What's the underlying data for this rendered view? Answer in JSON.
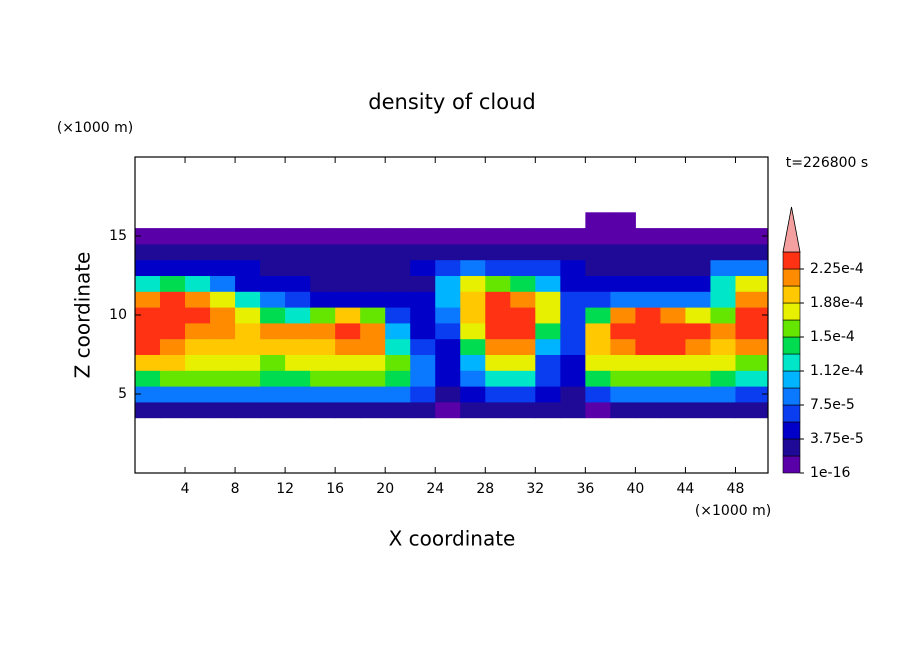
{
  "chart_data": {
    "type": "contourf",
    "title": "density of cloud",
    "xlabel": "X coordinate",
    "ylabel": "Z coordinate",
    "xlabel_unit": "(×1000 m)",
    "ylabel_unit": "(×1000 m)",
    "annotation": "t=226800 s",
    "xlim": [
      0,
      50.6
    ],
    "ylim": [
      0,
      20
    ],
    "xticks": [
      4,
      8,
      12,
      16,
      20,
      24,
      28,
      32,
      36,
      40,
      44,
      48
    ],
    "yticks": [
      5,
      10,
      15
    ],
    "x": [
      1,
      3,
      5,
      7,
      9,
      11,
      13,
      15,
      17,
      19,
      21,
      23,
      25,
      27,
      29,
      31,
      33,
      35,
      37,
      39,
      41,
      43,
      45,
      47,
      49
    ],
    "z": [
      4,
      5,
      6,
      7,
      8,
      9,
      10,
      11,
      12,
      13,
      14,
      15,
      16
    ],
    "values": [
      [
        2e-05,
        2e-05,
        2e-05,
        3e-05,
        3e-05,
        2e-05,
        2e-05,
        2e-05,
        2e-05,
        2e-05,
        2e-05,
        3e-05,
        1e-05,
        2e-05,
        2e-05,
        2e-05,
        2e-05,
        2e-05,
        1e-05,
        2e-05,
        2e-05,
        2e-05,
        2e-05,
        2e-05,
        2e-05
      ],
      [
        8e-05,
        9e-05,
        9e-05,
        9e-05,
        9e-05,
        8e-05,
        8e-05,
        8e-05,
        9e-05,
        9e-05,
        8e-05,
        6e-05,
        3e-05,
        5e-05,
        7e-05,
        7e-05,
        4e-05,
        3e-05,
        7e-05,
        9e-05,
        9e-05,
        9e-05,
        8e-05,
        8e-05,
        6e-05
      ],
      [
        0.00014,
        0.00015,
        0.00015,
        0.00015,
        0.00015,
        0.00014,
        0.00014,
        0.00015,
        0.00016,
        0.00016,
        0.00014,
        8e-05,
        4e-05,
        9e-05,
        0.00013,
        0.00013,
        6e-05,
        4e-05,
        0.00014,
        0.00015,
        0.00015,
        0.00015,
        0.00015,
        0.00014,
        0.00012
      ],
      [
        0.00019,
        0.00019,
        0.00017,
        0.00017,
        0.00017,
        0.00016,
        0.00017,
        0.00018,
        0.00018,
        0.00018,
        0.00015,
        8e-05,
        4e-05,
        0.00011,
        0.00017,
        0.00018,
        6e-05,
        5e-05,
        0.00017,
        0.00018,
        0.00018,
        0.00018,
        0.00018,
        0.00017,
        0.00016
      ],
      [
        0.00023,
        0.00022,
        0.0002,
        0.00019,
        0.0002,
        0.00019,
        0.0002,
        0.0002,
        0.00022,
        0.00021,
        0.00013,
        6e-05,
        5e-05,
        0.00014,
        0.00021,
        0.00022,
        0.0001,
        6e-05,
        0.00019,
        0.00022,
        0.00023,
        0.00023,
        0.00022,
        0.0002,
        0.00021
      ],
      [
        0.00024,
        0.00024,
        0.00022,
        0.00021,
        0.0002,
        0.00021,
        0.00022,
        0.00022,
        0.00023,
        0.00022,
        0.00011,
        5e-05,
        6e-05,
        0.00017,
        0.00024,
        0.00024,
        0.00014,
        6e-05,
        0.00019,
        0.00024,
        0.00024,
        0.00024,
        0.00023,
        0.00021,
        0.00023
      ],
      [
        0.00024,
        0.00024,
        0.00023,
        0.00022,
        0.00018,
        0.00014,
        0.00012,
        0.00016,
        0.00019,
        0.00015,
        7e-05,
        4e-05,
        8e-05,
        0.0002,
        0.00024,
        0.00024,
        0.00018,
        7e-05,
        0.00014,
        0.00022,
        0.00023,
        0.00022,
        0.00018,
        0.00015,
        0.00024
      ],
      [
        0.00022,
        0.00023,
        0.00022,
        0.00018,
        0.00012,
        8e-05,
        6e-05,
        5e-05,
        5e-05,
        5e-05,
        4e-05,
        4e-05,
        0.0001,
        0.0002,
        0.00023,
        0.00022,
        0.00017,
        7e-05,
        6e-05,
        8e-05,
        9e-05,
        8e-05,
        8e-05,
        0.00012,
        0.00022
      ],
      [
        0.00012,
        0.00014,
        0.00012,
        8e-05,
        5e-05,
        4e-05,
        4e-05,
        3e-05,
        3e-05,
        3e-05,
        3e-05,
        3e-05,
        0.00011,
        0.00017,
        0.00016,
        0.00014,
        0.0001,
        5e-05,
        4e-05,
        4e-05,
        4e-05,
        4e-05,
        4e-05,
        0.00012,
        0.00017
      ],
      [
        5e-05,
        5e-05,
        5e-05,
        4e-05,
        4e-05,
        3e-05,
        3e-05,
        3e-05,
        3e-05,
        3e-05,
        3e-05,
        4e-05,
        7e-05,
        8e-05,
        7e-05,
        6e-05,
        6e-05,
        4e-05,
        3e-05,
        3e-05,
        3e-05,
        3e-05,
        3e-05,
        8e-05,
        9e-05
      ],
      [
        2e-05,
        2e-05,
        2e-05,
        2e-05,
        2e-05,
        2e-05,
        2e-05,
        2e-05,
        2e-05,
        2e-05,
        2e-05,
        2e-05,
        3e-05,
        3e-05,
        3e-05,
        3e-05,
        3e-05,
        2e-05,
        2e-05,
        2e-05,
        2e-05,
        2e-05,
        2e-05,
        3e-05,
        3e-05
      ],
      [
        1e-05,
        1e-05,
        1e-05,
        1e-05,
        1e-05,
        1e-05,
        1e-05,
        1e-05,
        1e-05,
        1e-05,
        1e-05,
        1e-05,
        1e-05,
        1e-05,
        1e-05,
        1e-05,
        1e-05,
        1e-05,
        1e-05,
        1e-05,
        1e-05,
        1e-05,
        1e-05,
        1e-05,
        1e-05
      ],
      [
        null,
        null,
        null,
        null,
        null,
        null,
        null,
        null,
        null,
        null,
        null,
        null,
        null,
        null,
        null,
        null,
        null,
        null,
        1e-05,
        1e-05,
        null,
        null,
        null,
        null,
        null
      ]
    ],
    "levels": [
      1e-16,
      1.875e-05,
      3.75e-05,
      5.625e-05,
      7.5e-05,
      9.375e-05,
      0.0001125,
      0.00013125,
      0.00015,
      0.00016875,
      0.0001875,
      0.00020625,
      0.000225,
      0.00024375
    ],
    "colors": [
      "#5a00a8",
      "#1e0a96",
      "#0000c8",
      "#0a3cf0",
      "#0a78ff",
      "#00b4ff",
      "#00e6c8",
      "#00dc50",
      "#64e600",
      "#e6f000",
      "#ffc800",
      "#ff8c00",
      "#ff3214"
    ],
    "extend_color": "#f4a0a0",
    "cticks": [
      1e-16,
      {
        "value": 3.75e-05,
        "label": "3.75e-5"
      },
      {
        "value": 7.5e-05,
        "label": "7.5e-5"
      },
      {
        "value": 0.0001125,
        "label": "1.12e-4"
      },
      {
        "value": 0.00015,
        "label": "1.5e-4"
      },
      {
        "value": 0.0001875,
        "label": "1.88e-4"
      },
      {
        "value": 0.000225,
        "label": "2.25e-4"
      }
    ]
  }
}
